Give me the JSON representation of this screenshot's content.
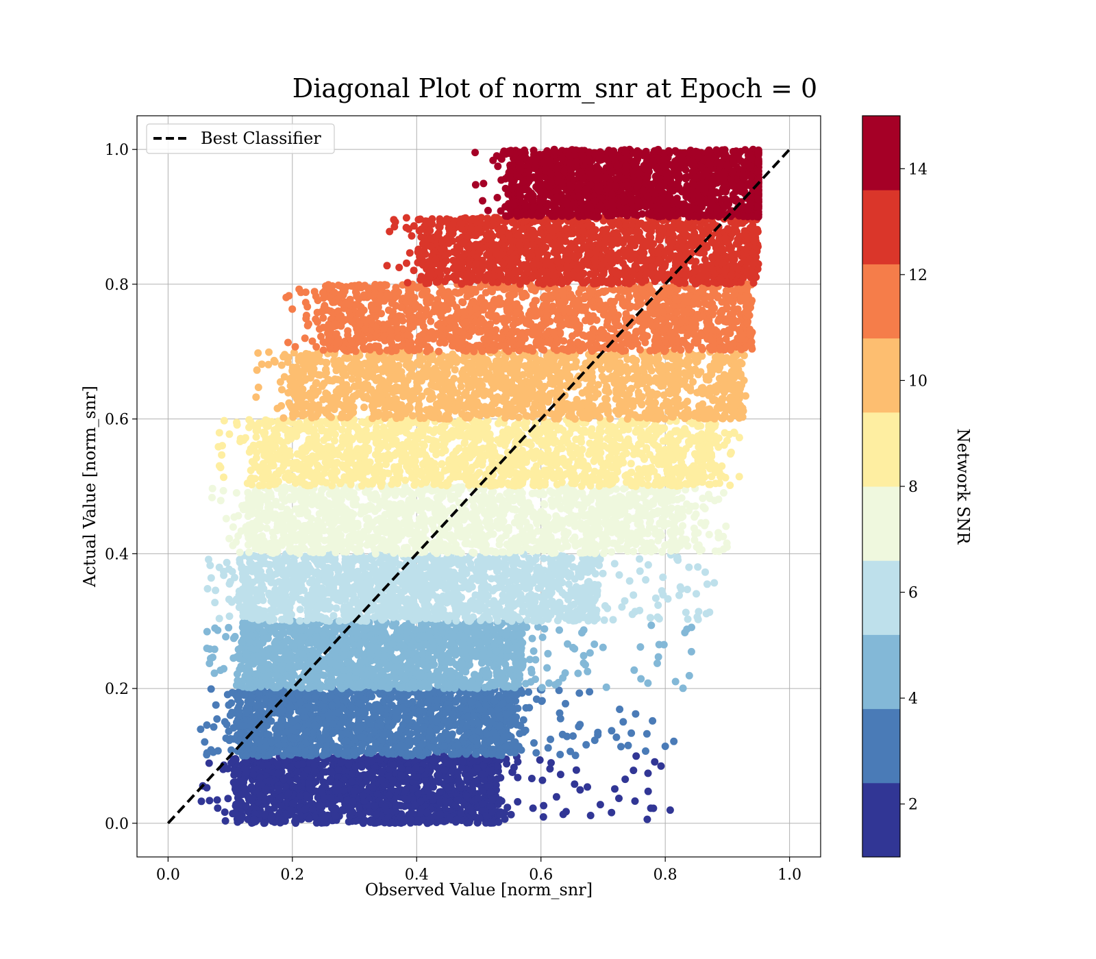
{
  "chart_data": {
    "type": "scatter",
    "title": "Diagonal Plot of norm_snr at Epoch = 0",
    "xlabel": "Observed Value [norm_snr]",
    "ylabel": "Actual Value [norm_snr]",
    "xlim": [
      -0.05,
      1.05
    ],
    "ylim": [
      -0.05,
      1.05
    ],
    "x_ticks": [
      "0.0",
      "0.2",
      "0.4",
      "0.6",
      "0.8",
      "1.0"
    ],
    "y_ticks": [
      "0.0",
      "0.2",
      "0.4",
      "0.6",
      "0.8",
      "1.0"
    ],
    "grid": true,
    "legend": {
      "placement": "top-left",
      "entries": [
        "Best Classifier"
      ]
    },
    "reference_line": {
      "name": "Best Classifier",
      "x": [
        0.0,
        1.0
      ],
      "y": [
        0.0,
        1.0
      ],
      "style": "dashed",
      "color": "#000000"
    },
    "colorbar": {
      "label": "Network SNR",
      "range": [
        1,
        15
      ],
      "ticks": [
        "2",
        "4",
        "6",
        "8",
        "10",
        "12",
        "14"
      ],
      "colormap": "RdYlBu_r",
      "bins": [
        {
          "snr_min": 1,
          "snr_max": 2.4,
          "color": "#313695"
        },
        {
          "snr_min": 2.4,
          "snr_max": 3.8,
          "color": "#4a7bb7"
        },
        {
          "snr_min": 3.8,
          "snr_max": 5.2,
          "color": "#83b8d7"
        },
        {
          "snr_min": 5.2,
          "snr_max": 6.6,
          "color": "#bee0eb"
        },
        {
          "snr_min": 6.6,
          "snr_max": 8.0,
          "color": "#eff8de"
        },
        {
          "snr_min": 8.0,
          "snr_max": 9.4,
          "color": "#feeea1"
        },
        {
          "snr_min": 9.4,
          "snr_max": 10.8,
          "color": "#fdbe70"
        },
        {
          "snr_min": 10.8,
          "snr_max": 12.2,
          "color": "#f57d4a"
        },
        {
          "snr_min": 12.2,
          "snr_max": 13.6,
          "color": "#da362a"
        },
        {
          "snr_min": 13.6,
          "snr_max": 15,
          "color": "#a50026"
        }
      ]
    },
    "bands": [
      {
        "y_min": 0.0,
        "y_max": 0.1,
        "x_min": 0.11,
        "x_max": 0.53,
        "color": "#313695",
        "tail_x_max": 0.82
      },
      {
        "y_min": 0.1,
        "y_max": 0.2,
        "x_min": 0.11,
        "x_max": 0.56,
        "color": "#4a7bb7",
        "tail_x_max": 0.82
      },
      {
        "y_min": 0.2,
        "y_max": 0.3,
        "x_min": 0.12,
        "x_max": 0.57,
        "color": "#83b8d7",
        "tail_x_max": 0.85
      },
      {
        "y_min": 0.3,
        "y_max": 0.4,
        "x_min": 0.12,
        "x_max": 0.69,
        "color": "#bee0eb",
        "tail_x_max": 0.88
      },
      {
        "y_min": 0.4,
        "y_max": 0.5,
        "x_min": 0.13,
        "x_max": 0.82,
        "color": "#eff8de",
        "tail_x_max": 0.9
      },
      {
        "y_min": 0.5,
        "y_max": 0.6,
        "x_min": 0.14,
        "x_max": 0.87,
        "color": "#feeea1",
        "tail_x_max": 0.92
      },
      {
        "y_min": 0.6,
        "y_max": 0.7,
        "x_min": 0.2,
        "x_max": 0.91,
        "color": "#fdbe70",
        "tail_x_max": 0.93
      },
      {
        "y_min": 0.7,
        "y_max": 0.8,
        "x_min": 0.25,
        "x_max": 0.93,
        "color": "#f57d4a",
        "tail_x_max": 0.94
      },
      {
        "y_min": 0.8,
        "y_max": 0.9,
        "x_min": 0.41,
        "x_max": 0.94,
        "color": "#da362a",
        "tail_x_max": 0.95
      },
      {
        "y_min": 0.9,
        "y_max": 1.0,
        "x_min": 0.55,
        "x_max": 0.95,
        "color": "#a50026",
        "tail_x_max": 0.95
      }
    ]
  }
}
